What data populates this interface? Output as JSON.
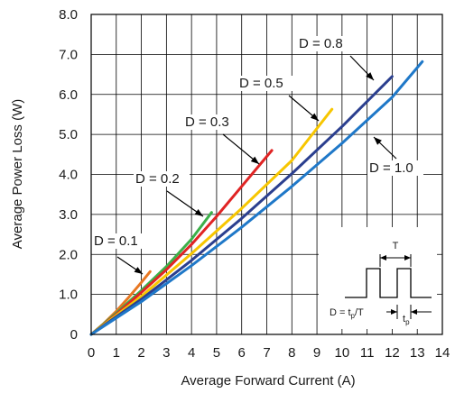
{
  "chart_data": {
    "type": "line",
    "title": "",
    "xlabel": "Average Forward Current (A)",
    "ylabel": "Average Power Loss (W)",
    "xlim": [
      0,
      14
    ],
    "ylim": [
      0,
      8
    ],
    "x_ticks": [
      "0",
      "1",
      "2",
      "3",
      "4",
      "5",
      "6",
      "7",
      "8",
      "9",
      "10",
      "11",
      "12",
      "13",
      "14"
    ],
    "y_ticks": [
      "0",
      "1.0",
      "2.0",
      "3.0",
      "4.0",
      "5.0",
      "6.0",
      "7.0",
      "8.0"
    ],
    "grid": true,
    "series": [
      {
        "name": "D = 0.1",
        "color": "#e87722",
        "x": [
          0,
          0.5,
          1,
          1.5,
          2,
          2.35
        ],
        "y": [
          0,
          0.27,
          0.58,
          0.93,
          1.3,
          1.57
        ]
      },
      {
        "name": "D = 0.2",
        "color": "#3cb04a",
        "x": [
          0,
          1,
          2,
          3,
          4,
          4.8
        ],
        "y": [
          0,
          0.53,
          1.1,
          1.7,
          2.38,
          3.05
        ]
      },
      {
        "name": "D = 0.3",
        "color": "#e02424",
        "x": [
          0,
          1,
          2,
          3,
          4,
          5,
          6,
          7.2
        ],
        "y": [
          0,
          0.5,
          1.05,
          1.62,
          2.25,
          2.95,
          3.7,
          4.6
        ]
      },
      {
        "name": "D = 0.5",
        "color": "#f7c600",
        "x": [
          0,
          2,
          4,
          6,
          8,
          9.6
        ],
        "y": [
          0,
          0.95,
          2.02,
          3.15,
          4.35,
          5.63
        ]
      },
      {
        "name": "D = 0.8",
        "color": "#2b3f8f",
        "x": [
          0,
          2,
          4,
          6,
          8,
          10,
          12
        ],
        "y": [
          0,
          0.88,
          1.85,
          2.9,
          4.02,
          5.2,
          6.45
        ]
      },
      {
        "name": "D = 1.0",
        "color": "#1f78c8",
        "x": [
          0,
          2,
          4,
          6,
          8,
          10,
          12,
          13.2
        ],
        "y": [
          0,
          0.82,
          1.72,
          2.68,
          3.7,
          4.78,
          5.93,
          6.82
        ]
      }
    ],
    "annotations": [
      {
        "text": "D = 0.1",
        "series": 0
      },
      {
        "text": "D = 0.2",
        "series": 1
      },
      {
        "text": "D = 0.3",
        "series": 2
      },
      {
        "text": "D = 0.5",
        "series": 3
      },
      {
        "text": "D = 0.8",
        "series": 4
      },
      {
        "text": "D = 1.0",
        "series": 5
      }
    ],
    "inset": {
      "period_label": "T",
      "formula_main": "D = t",
      "formula_sub": "p",
      "formula_tail": "/T",
      "pulse_main": "t",
      "pulse_sub": "p"
    }
  }
}
